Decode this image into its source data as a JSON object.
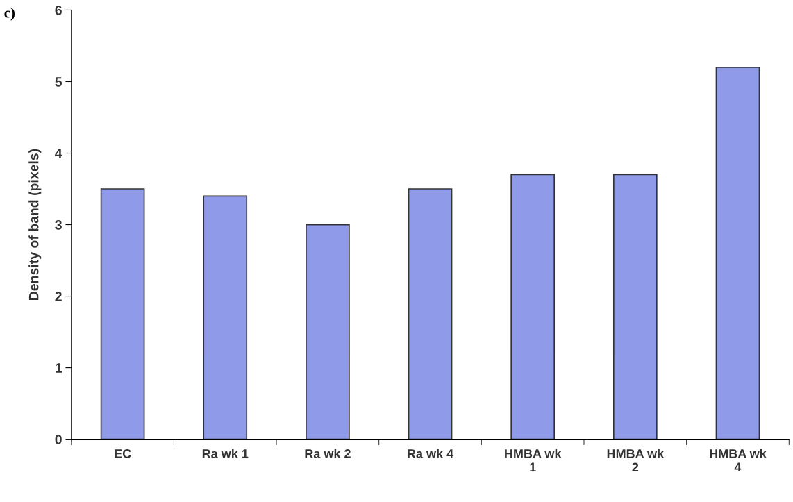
{
  "chart_data": {
    "type": "bar",
    "ylabel": "Density of band (pixels)",
    "annotations": [
      "c)"
    ],
    "categories": [
      "EC",
      "Ra wk 1",
      "Ra wk 2",
      "Ra wk 4",
      "HMBA wk\n1",
      "HMBA wk\n2",
      "HMBA wk\n4"
    ],
    "values": [
      3.5,
      3.4,
      3.0,
      3.5,
      3.7,
      3.7,
      5.2
    ],
    "color": "#8f9be8",
    "ylim": [
      0,
      6
    ],
    "yticks": [
      0,
      1,
      2,
      3,
      4,
      5,
      6
    ],
    "grid": false,
    "legend": false
  }
}
